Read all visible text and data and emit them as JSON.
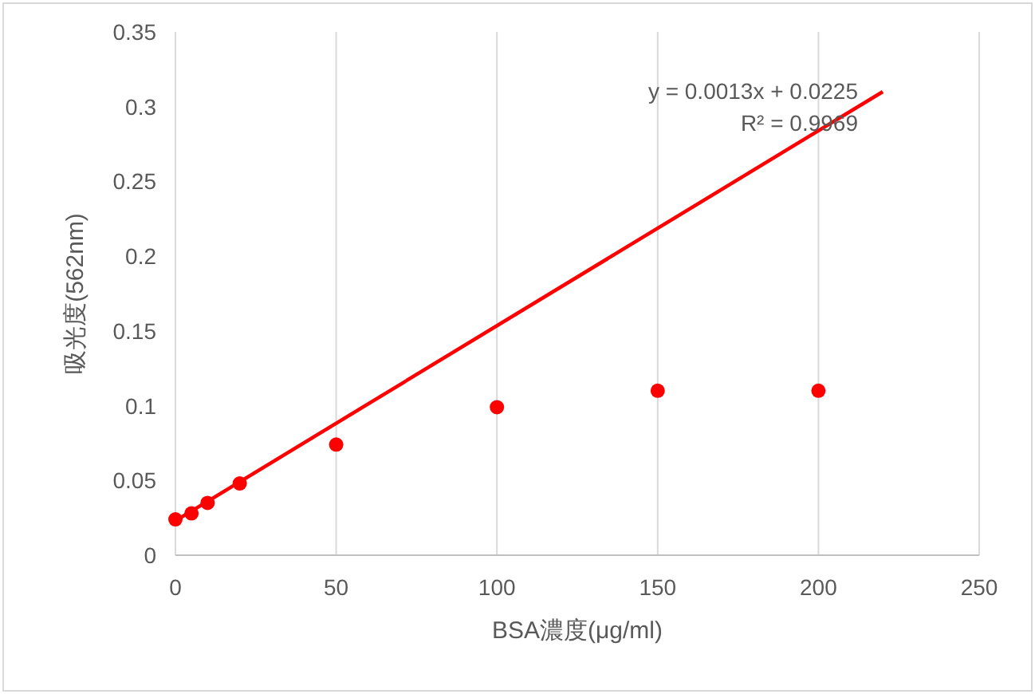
{
  "chart_data": {
    "type": "scatter",
    "xlabel": "BSA濃度(μg/ml)",
    "ylabel": "吸光度(562nm)",
    "x": [
      0,
      5,
      10,
      20,
      50,
      100,
      150,
      200
    ],
    "series": [
      {
        "color": "#ff0000",
        "marker": "circle",
        "values": [
          0.024,
          0.028,
          0.035,
          0.048,
          0.074,
          0.099,
          0.11,
          0.11
        ]
      },
      {
        "type": "line",
        "color": "#ff0000",
        "marker": "none",
        "x": [
          0,
          220
        ],
        "values": [
          0.023,
          0.31
        ]
      }
    ],
    "annotations": [
      "y = 0.0013x + 0.0225",
      "R² = 0.9969"
    ],
    "xlim": [
      0,
      250
    ],
    "xticks": [
      0,
      50,
      100,
      150,
      200,
      250
    ],
    "ylim": [
      0,
      0.35
    ],
    "yticks": [
      0,
      0.05,
      0.1,
      0.15,
      0.2,
      0.25,
      0.3,
      0.35
    ],
    "grid": "x"
  }
}
